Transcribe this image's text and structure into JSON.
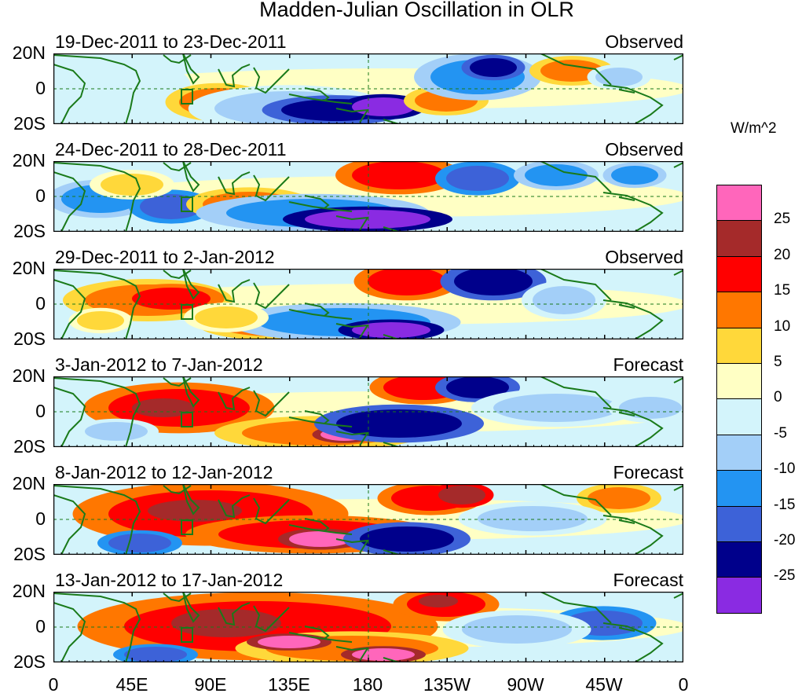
{
  "title": "Madden-Julian Oscillation in OLR",
  "units_label": "W/m^2",
  "lat_labels": [
    "20N",
    "0",
    "20S"
  ],
  "lon_labels": [
    "0",
    "45E",
    "90E",
    "135E",
    "180",
    "135W",
    "90W",
    "45W",
    "0"
  ],
  "panels": [
    {
      "date_range": "19-Dec-2011 to 23-Dec-2011",
      "kind": "Observed"
    },
    {
      "date_range": "24-Dec-2011 to 28-Dec-2011",
      "kind": "Observed"
    },
    {
      "date_range": "29-Dec-2011 to 2-Jan-2012",
      "kind": "Observed"
    },
    {
      "date_range": "3-Jan-2012 to 7-Jan-2012",
      "kind": "Forecast"
    },
    {
      "date_range": "8-Jan-2012 to 12-Jan-2012",
      "kind": "Forecast"
    },
    {
      "date_range": "13-Jan-2012 to 17-Jan-2012",
      "kind": "Forecast"
    }
  ],
  "colorbar": {
    "labels": [
      "25",
      "20",
      "15",
      "10",
      "5",
      "0",
      "-5",
      "-10",
      "-15",
      "-20",
      "-25"
    ],
    "colors": [
      "#ff66bb",
      "#a52a2a",
      "#ff0000",
      "#ff7700",
      "#ffd83a",
      "#ffffc4",
      "#d3f4fb",
      "#a3cff8",
      "#2394f2",
      "#3d62d8",
      "#00008b",
      "#8a2be2"
    ]
  },
  "colors": {
    "coast": "#1a7a1a",
    "equator": "#1a7a1a",
    "grid": "#000000"
  }
}
